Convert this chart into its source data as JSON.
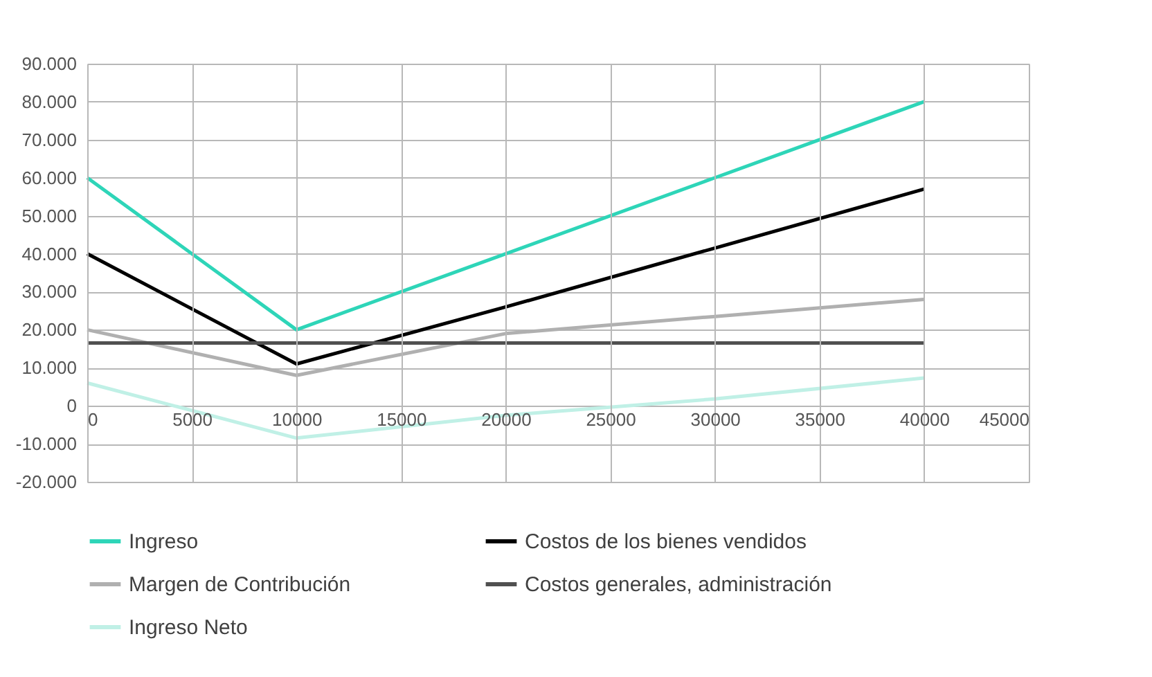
{
  "chart_data": {
    "type": "line",
    "x": [
      0,
      10000,
      20000,
      30000,
      40000
    ],
    "series": [
      {
        "name": "Ingreso",
        "color": "#2ed5b8",
        "values": [
          60000,
          20000,
          40000,
          60000,
          80000
        ]
      },
      {
        "name": "Costos de los bienes vendidos",
        "color": "#000000",
        "values": [
          40000,
          11000,
          26000,
          41500,
          57000
        ]
      },
      {
        "name": "Margen de Contribución",
        "color": "#b0b0b0",
        "values": [
          20000,
          8000,
          19000,
          23500,
          28000
        ]
      },
      {
        "name": "Costos generales, administración",
        "color": "#505050",
        "values": [
          16500,
          16500,
          16500,
          16500,
          16500
        ]
      },
      {
        "name": "Ingreso Neto",
        "color": "#c0f0e6",
        "values": [
          6000,
          -8500,
          -2500,
          1800,
          7300
        ]
      }
    ],
    "xlim": [
      0,
      45000
    ],
    "xticks": [
      0,
      5000,
      10000,
      15000,
      20000,
      25000,
      30000,
      35000,
      40000,
      45000
    ],
    "ylim": [
      -20000,
      90000
    ],
    "yticks": [
      {
        "value": -20000,
        "label": "-20.000"
      },
      {
        "value": -10000,
        "label": "-10.000"
      },
      0,
      {
        "value": 10000,
        "label": "10.000"
      },
      {
        "value": 20000,
        "label": "20.000"
      },
      {
        "value": 30000,
        "label": "30.000"
      },
      {
        "value": 40000,
        "label": "40.000"
      },
      {
        "value": 50000,
        "label": "50.000"
      },
      {
        "value": 60000,
        "label": "60.000"
      },
      {
        "value": 70000,
        "label": "70.000"
      },
      {
        "value": 80000,
        "label": "80.000"
      },
      {
        "value": 90000,
        "label": "90.000"
      }
    ],
    "grid": true,
    "legend": "bottom",
    "marker": "none",
    "line_style": "solid"
  }
}
